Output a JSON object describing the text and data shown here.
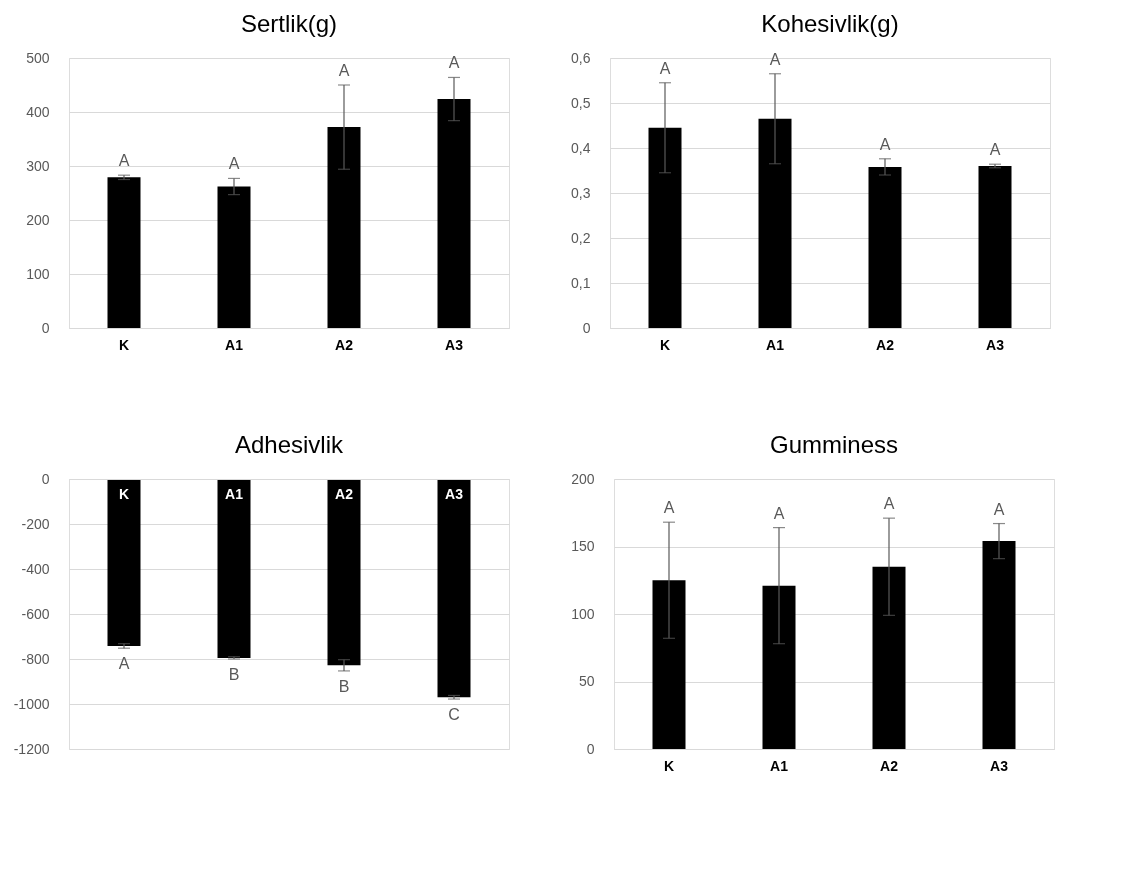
{
  "chart_data": [
    {
      "type": "bar",
      "title": "Sertlik(g)",
      "categories": [
        "K",
        "A1",
        "A2",
        "A3"
      ],
      "values": [
        279,
        262,
        372,
        424
      ],
      "errors": [
        4,
        15,
        78,
        40
      ],
      "colors": [
        "#000000",
        "#000000",
        "#000000",
        "#000000"
      ],
      "ylim": [
        0,
        500
      ],
      "yticks": [
        0,
        100,
        200,
        300,
        400,
        500
      ],
      "grid": "y",
      "annotations": [
        "A",
        "A",
        "A",
        "A"
      ]
    },
    {
      "type": "bar",
      "title": "Kohesivlik(g)",
      "categories": [
        "K",
        "A1",
        "A2",
        "A3"
      ],
      "values": [
        0.445,
        0.465,
        0.358,
        0.36
      ],
      "errors": [
        0.1,
        0.1,
        0.018,
        0.004
      ],
      "colors": [
        "#000000",
        "#000000",
        "#000000",
        "#000000"
      ],
      "ylim": [
        0,
        0.6
      ],
      "yticks": [
        0,
        {
          "value": 0.1,
          "label": "0,1"
        },
        {
          "value": 0.2,
          "label": "0,2"
        },
        {
          "value": 0.3,
          "label": "0,3"
        },
        {
          "value": 0.4,
          "label": "0,4"
        },
        {
          "value": 0.5,
          "label": "0,5"
        },
        {
          "value": 0.6,
          "label": "0,6"
        }
      ],
      "grid": "y",
      "annotations": [
        "A",
        "A",
        "A",
        "A"
      ]
    },
    {
      "type": "bar",
      "title": "Adhesivlik",
      "categories": [
        "K",
        "A1",
        "A2",
        "A3"
      ],
      "values": [
        -742,
        -795,
        -828,
        -970
      ],
      "errors": [
        10,
        5,
        25,
        8
      ],
      "colors": [
        "#000000",
        "#000000",
        "#000000",
        "#000000"
      ],
      "ylim": [
        -1200,
        0
      ],
      "yticks": [
        -1200,
        -1000,
        -800,
        -600,
        -400,
        -200,
        0
      ],
      "grid": "y",
      "annotations": [
        "A",
        "B",
        "B",
        "C"
      ]
    },
    {
      "type": "bar",
      "title": "Gumminess",
      "categories": [
        "K",
        "A1",
        "A2",
        "A3"
      ],
      "values": [
        125,
        121,
        135,
        154
      ],
      "errors": [
        43,
        43,
        36,
        13
      ],
      "colors": [
        "#000000",
        "#000000",
        "#000000",
        "#000000"
      ],
      "ylim": [
        0,
        200
      ],
      "yticks": [
        0,
        50,
        100,
        150,
        200
      ],
      "grid": "y",
      "annotations": [
        "A",
        "A",
        "A",
        "A"
      ]
    }
  ]
}
